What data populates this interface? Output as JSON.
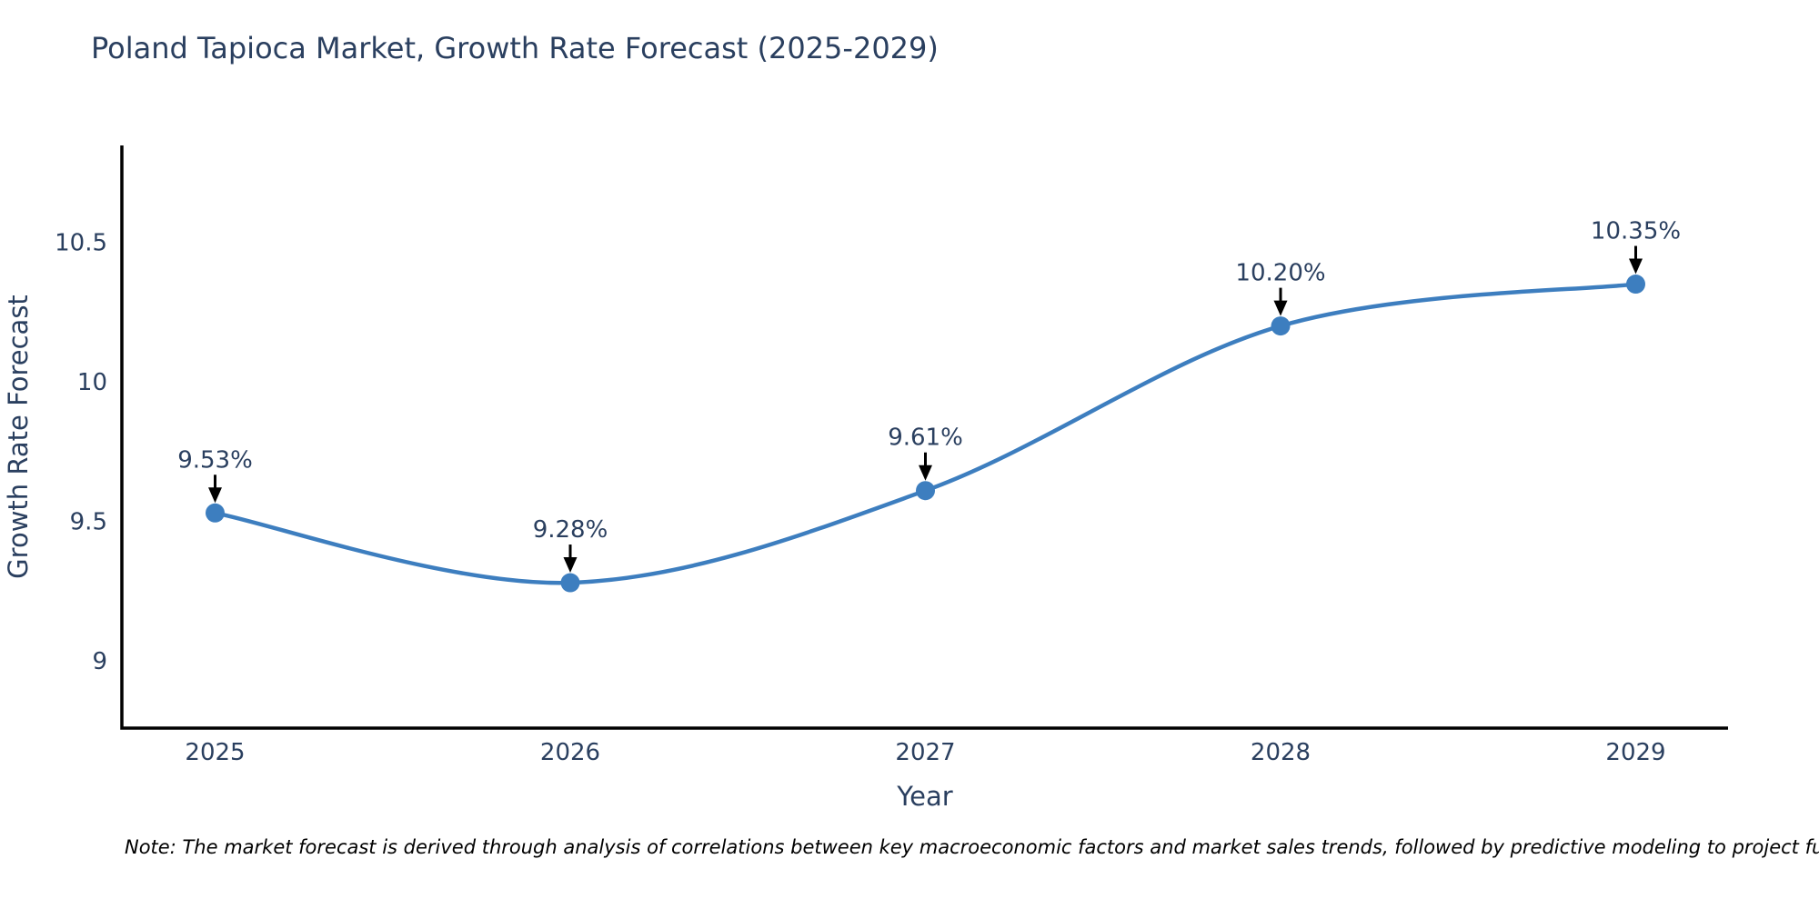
{
  "title": "Poland Tapioca Market, Growth Rate Forecast (2025-2029)",
  "note": "Note: The market forecast is derived through analysis of correlations between key macroeconomic factors and market sales trends, followed by predictive modeling to project future sal",
  "chart_data": {
    "type": "line",
    "title": "Poland Tapioca Market, Growth Rate Forecast (2025-2029)",
    "xlabel": "Year",
    "ylabel": "Growth Rate Forecast",
    "x": [
      2025,
      2026,
      2027,
      2028,
      2029
    ],
    "xtick_labels": [
      "2025",
      "2026",
      "2027",
      "2028",
      "2029"
    ],
    "series": [
      {
        "name": "Growth Rate Forecast",
        "values": [
          9.53,
          9.28,
          9.61,
          10.2,
          10.35
        ]
      }
    ],
    "point_labels": [
      "9.53%",
      "9.28%",
      "9.61%",
      "10.20%",
      "10.35%"
    ],
    "yticks": [
      9,
      9.5,
      10,
      10.5
    ],
    "ytick_labels": [
      "9",
      "9.5",
      "10",
      "10.5"
    ],
    "ylim": [
      8.76,
      10.85
    ],
    "line_shape": "spline",
    "markers": true,
    "grid": false,
    "legend": false,
    "line_color": "#3d7ebf",
    "marker_color": "#3d7ebf",
    "text_color": "#2a3f5f",
    "axis_color": "#000000",
    "arrow_color": "#000000"
  }
}
